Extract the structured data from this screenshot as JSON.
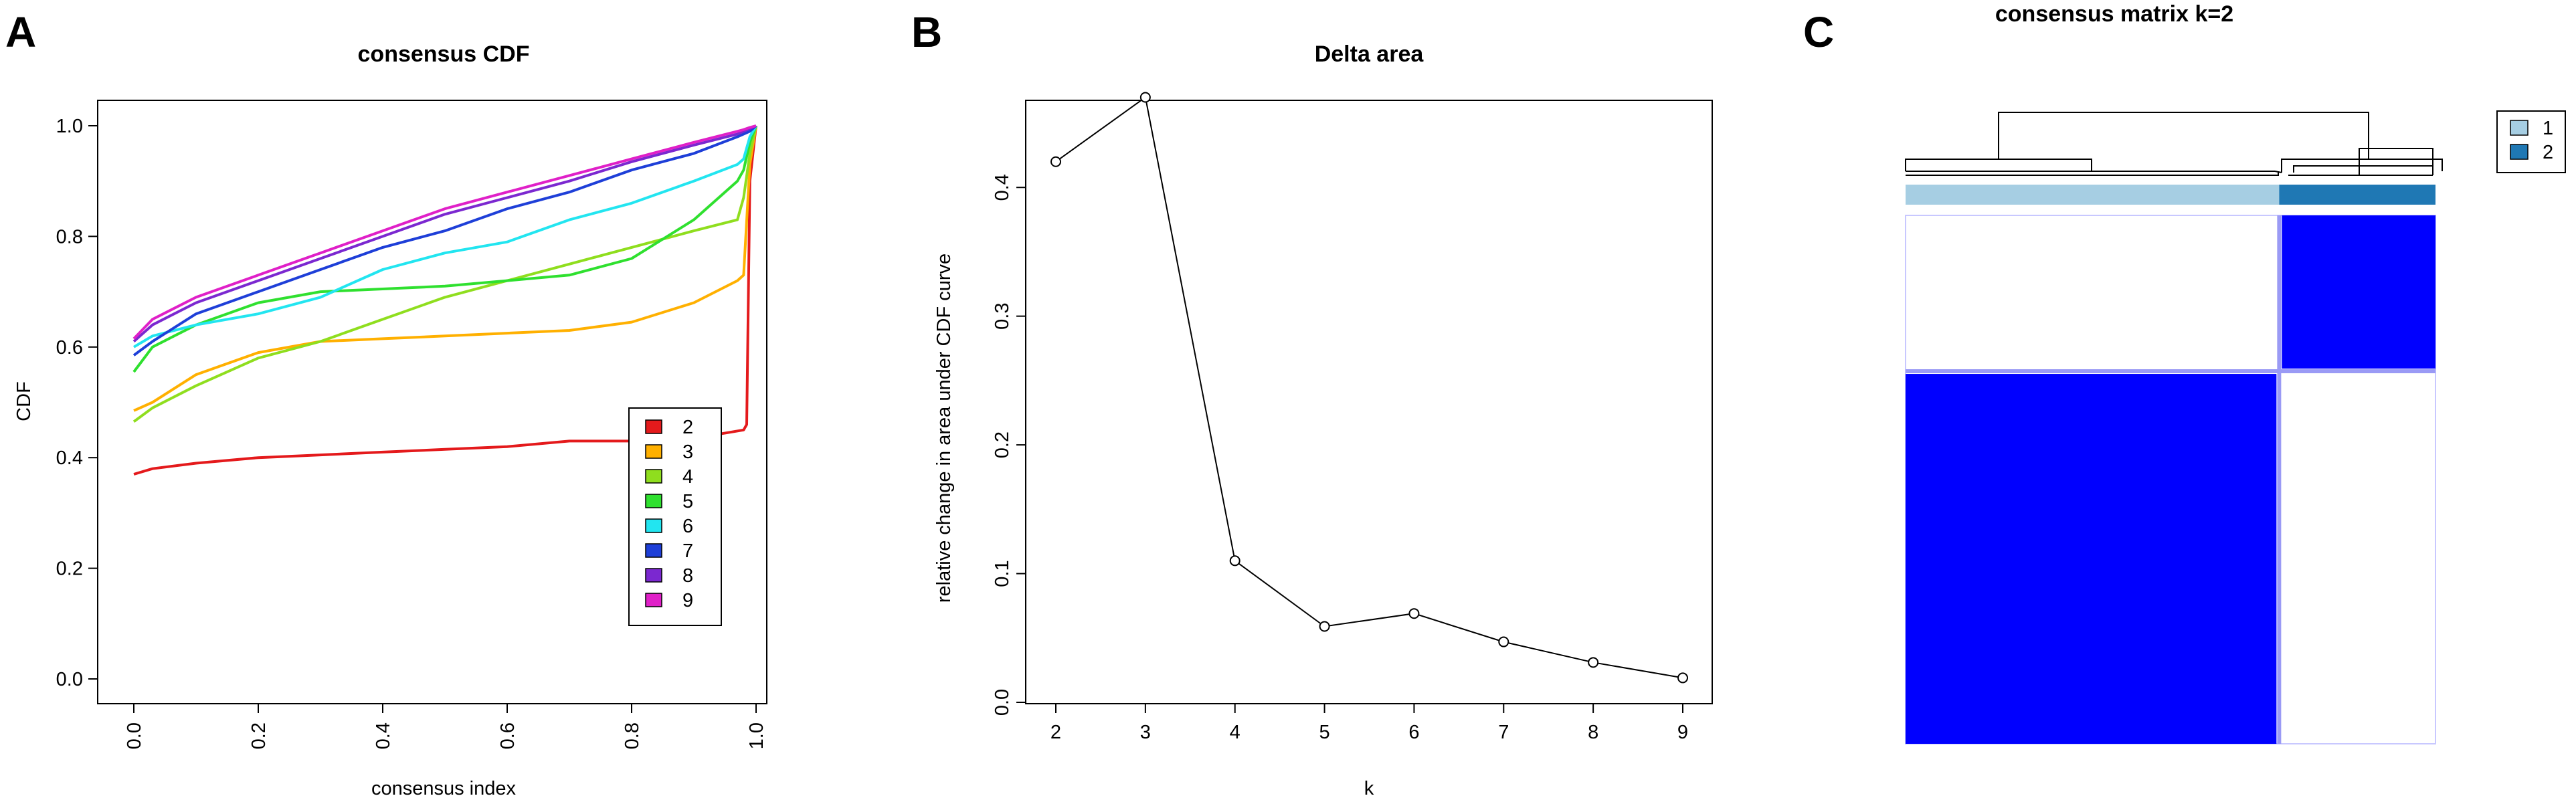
{
  "panels": [
    {
      "letter": "A",
      "chart_data": {
        "type": "line",
        "title": "consensus CDF",
        "xlabel": "consensus index",
        "ylabel": "CDF",
        "xlim": [
          0,
          1
        ],
        "ylim": [
          0,
          1
        ],
        "xticks": [
          "0.0",
          "0.2",
          "0.4",
          "0.6",
          "0.8",
          "1.0"
        ],
        "yticks": [
          "0.0",
          "0.2",
          "0.4",
          "0.6",
          "0.8",
          "1.0"
        ],
        "legend_position": "center-right",
        "series": [
          {
            "name": "2",
            "color": "#e41a1c",
            "x": [
              0.0,
              0.03,
              0.1,
              0.2,
              0.3,
              0.4,
              0.5,
              0.6,
              0.7,
              0.8,
              0.9,
              0.98,
              0.985,
              0.99,
              1.0
            ],
            "y": [
              0.37,
              0.38,
              0.39,
              0.4,
              0.405,
              0.41,
              0.415,
              0.42,
              0.43,
              0.43,
              0.435,
              0.45,
              0.46,
              0.9,
              1.0
            ]
          },
          {
            "name": "3",
            "color": "#ffb000",
            "x": [
              0.0,
              0.03,
              0.1,
              0.2,
              0.3,
              0.4,
              0.5,
              0.6,
              0.7,
              0.8,
              0.9,
              0.97,
              0.98,
              0.99,
              1.0
            ],
            "y": [
              0.485,
              0.5,
              0.55,
              0.59,
              0.61,
              0.615,
              0.62,
              0.625,
              0.63,
              0.645,
              0.68,
              0.72,
              0.73,
              0.93,
              1.0
            ]
          },
          {
            "name": "4",
            "color": "#8fde1e",
            "x": [
              0.0,
              0.03,
              0.1,
              0.2,
              0.3,
              0.4,
              0.5,
              0.6,
              0.7,
              0.8,
              0.9,
              0.97,
              0.98,
              0.99,
              1.0
            ],
            "y": [
              0.465,
              0.49,
              0.53,
              0.58,
              0.61,
              0.65,
              0.69,
              0.72,
              0.75,
              0.78,
              0.81,
              0.83,
              0.87,
              0.95,
              1.0
            ]
          },
          {
            "name": "5",
            "color": "#2fe02f",
            "x": [
              0.0,
              0.03,
              0.1,
              0.2,
              0.3,
              0.4,
              0.5,
              0.6,
              0.7,
              0.8,
              0.9,
              0.97,
              0.98,
              0.99,
              1.0
            ],
            "y": [
              0.555,
              0.6,
              0.64,
              0.68,
              0.7,
              0.705,
              0.71,
              0.72,
              0.73,
              0.76,
              0.83,
              0.9,
              0.92,
              0.97,
              1.0
            ]
          },
          {
            "name": "6",
            "color": "#22e5f0",
            "x": [
              0.0,
              0.03,
              0.1,
              0.2,
              0.3,
              0.4,
              0.5,
              0.6,
              0.7,
              0.8,
              0.9,
              0.97,
              0.98,
              0.99,
              1.0
            ],
            "y": [
              0.6,
              0.62,
              0.64,
              0.66,
              0.69,
              0.74,
              0.77,
              0.79,
              0.83,
              0.86,
              0.9,
              0.93,
              0.94,
              0.98,
              1.0
            ]
          },
          {
            "name": "7",
            "color": "#1e3fd8",
            "x": [
              0.0,
              0.03,
              0.1,
              0.2,
              0.3,
              0.4,
              0.5,
              0.6,
              0.7,
              0.8,
              0.9,
              0.97,
              0.98,
              0.99,
              1.0
            ],
            "y": [
              0.585,
              0.61,
              0.66,
              0.7,
              0.74,
              0.78,
              0.81,
              0.85,
              0.88,
              0.92,
              0.95,
              0.98,
              0.985,
              0.99,
              1.0
            ]
          },
          {
            "name": "8",
            "color": "#7b28d0",
            "x": [
              0.0,
              0.03,
              0.1,
              0.2,
              0.3,
              0.4,
              0.5,
              0.6,
              0.7,
              0.8,
              0.9,
              0.97,
              0.98,
              0.99,
              1.0
            ],
            "y": [
              0.61,
              0.64,
              0.68,
              0.72,
              0.76,
              0.8,
              0.84,
              0.87,
              0.9,
              0.935,
              0.965,
              0.985,
              0.99,
              0.995,
              1.0
            ]
          },
          {
            "name": "9",
            "color": "#e020c8",
            "x": [
              0.0,
              0.03,
              0.1,
              0.2,
              0.3,
              0.4,
              0.5,
              0.6,
              0.7,
              0.8,
              0.9,
              0.97,
              0.98,
              0.99,
              1.0
            ],
            "y": [
              0.615,
              0.65,
              0.69,
              0.73,
              0.77,
              0.81,
              0.85,
              0.88,
              0.91,
              0.94,
              0.97,
              0.99,
              0.993,
              0.997,
              1.0
            ]
          }
        ]
      }
    },
    {
      "letter": "B",
      "chart_data": {
        "type": "line",
        "title": "Delta area",
        "xlabel": "k",
        "ylabel": "relative change in area under CDF curve",
        "xlim": [
          2,
          9
        ],
        "ylim": [
          0,
          0.45
        ],
        "xticks": [
          "2",
          "3",
          "4",
          "5",
          "6",
          "7",
          "8",
          "9"
        ],
        "yticks": [
          "0.0",
          "0.1",
          "0.2",
          "0.3",
          "0.4"
        ],
        "series": [
          {
            "name": "",
            "color": "#000000",
            "x": [
              2,
              3,
              4,
              5,
              6,
              7,
              8,
              9
            ],
            "y": [
              0.42,
              0.47,
              0.11,
              0.059,
              0.069,
              0.047,
              0.031,
              0.019
            ]
          }
        ]
      }
    },
    {
      "letter": "C",
      "chart_data": {
        "type": "heatmap",
        "title": "consensus matrix k=2",
        "clusters": [
          "1",
          "2"
        ],
        "cluster_fractions": [
          0.705,
          0.295
        ],
        "cluster_colors": [
          "#a6cee3",
          "#1f78b4"
        ],
        "cell_color": "#0000ff",
        "matrix": [
          [
            1,
            0
          ],
          [
            0,
            1
          ]
        ],
        "legend_position": "top-right"
      }
    }
  ]
}
